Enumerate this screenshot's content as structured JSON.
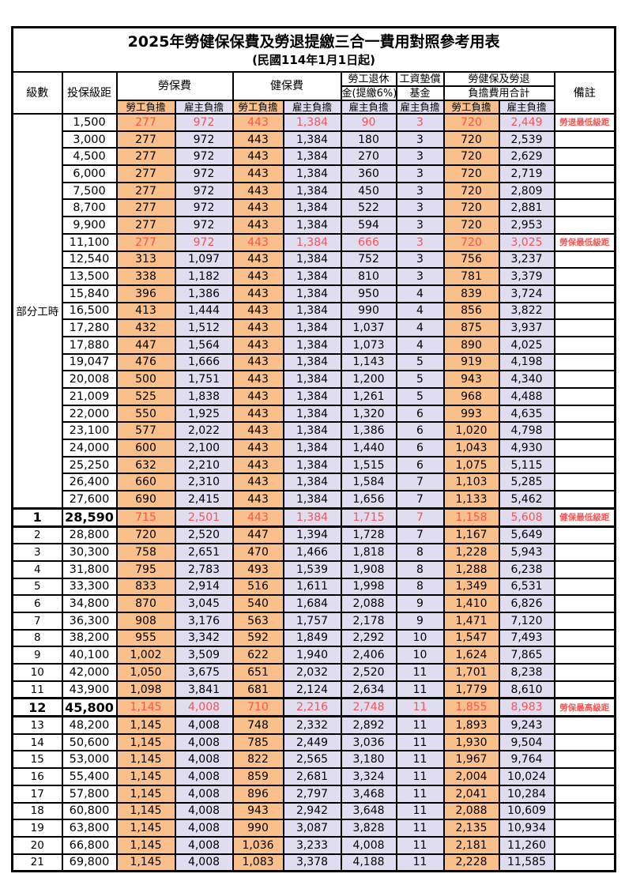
{
  "title": "2025年勞健保保費及勞退提繳三合一費用對照參考用表",
  "subtitle": "(民國114年1月1日起)",
  "colors": {
    "employee_bg": "#fac08c",
    "employer_bg": "#e0ddf0",
    "highlight_text": "#ff5050",
    "border": "#000000"
  },
  "header": {
    "level": "級數",
    "bracket": "投保級距",
    "labor_fee": "勞保費",
    "health_fee": "健保費",
    "pension_line1": "勞工退休",
    "pension_line2": "金(提繳6%)",
    "wage_fund_line1": "工資墊償",
    "wage_fund_line2": "基金",
    "total_line1": "勞健保及勞退",
    "total_line2": "負擔費用合計",
    "remark": "備註",
    "employee": "勞工負擔",
    "employer": "雇主負擔"
  },
  "part_time_label": "部分工時",
  "part_time_rowspan": 23,
  "rows": [
    {
      "level": "",
      "bracket": "1,500",
      "values": [
        "277",
        "972",
        "443",
        "1,384",
        "90",
        "3",
        "720",
        "2,449"
      ],
      "remark": "勞退最低級距",
      "highlight": true
    },
    {
      "level": "",
      "bracket": "3,000",
      "values": [
        "277",
        "972",
        "443",
        "1,384",
        "180",
        "3",
        "720",
        "2,539"
      ],
      "remark": ""
    },
    {
      "level": "",
      "bracket": "4,500",
      "values": [
        "277",
        "972",
        "443",
        "1,384",
        "270",
        "3",
        "720",
        "2,629"
      ],
      "remark": ""
    },
    {
      "level": "",
      "bracket": "6,000",
      "values": [
        "277",
        "972",
        "443",
        "1,384",
        "360",
        "3",
        "720",
        "2,719"
      ],
      "remark": ""
    },
    {
      "level": "",
      "bracket": "7,500",
      "values": [
        "277",
        "972",
        "443",
        "1,384",
        "450",
        "3",
        "720",
        "2,809"
      ],
      "remark": ""
    },
    {
      "level": "",
      "bracket": "8,700",
      "values": [
        "277",
        "972",
        "443",
        "1,384",
        "522",
        "3",
        "720",
        "2,881"
      ],
      "remark": ""
    },
    {
      "level": "",
      "bracket": "9,900",
      "values": [
        "277",
        "972",
        "443",
        "1,384",
        "594",
        "3",
        "720",
        "2,953"
      ],
      "remark": ""
    },
    {
      "level": "",
      "bracket": "11,100",
      "values": [
        "277",
        "972",
        "443",
        "1,384",
        "666",
        "3",
        "720",
        "3,025"
      ],
      "remark": "勞保最低級距",
      "highlight": true
    },
    {
      "level": "",
      "bracket": "12,540",
      "values": [
        "313",
        "1,097",
        "443",
        "1,384",
        "752",
        "3",
        "756",
        "3,237"
      ],
      "remark": ""
    },
    {
      "level": "",
      "bracket": "13,500",
      "values": [
        "338",
        "1,182",
        "443",
        "1,384",
        "810",
        "3",
        "781",
        "3,379"
      ],
      "remark": ""
    },
    {
      "level": "",
      "bracket": "15,840",
      "values": [
        "396",
        "1,386",
        "443",
        "1,384",
        "950",
        "4",
        "839",
        "3,724"
      ],
      "remark": ""
    },
    {
      "level": "",
      "bracket": "16,500",
      "values": [
        "413",
        "1,444",
        "443",
        "1,384",
        "990",
        "4",
        "856",
        "3,822"
      ],
      "remark": ""
    },
    {
      "level": "",
      "bracket": "17,280",
      "values": [
        "432",
        "1,512",
        "443",
        "1,384",
        "1,037",
        "4",
        "875",
        "3,937"
      ],
      "remark": ""
    },
    {
      "level": "",
      "bracket": "17,880",
      "values": [
        "447",
        "1,564",
        "443",
        "1,384",
        "1,073",
        "4",
        "890",
        "4,025"
      ],
      "remark": ""
    },
    {
      "level": "",
      "bracket": "19,047",
      "values": [
        "476",
        "1,666",
        "443",
        "1,384",
        "1,143",
        "5",
        "919",
        "4,198"
      ],
      "remark": ""
    },
    {
      "level": "",
      "bracket": "20,008",
      "values": [
        "500",
        "1,751",
        "443",
        "1,384",
        "1,200",
        "5",
        "943",
        "4,340"
      ],
      "remark": ""
    },
    {
      "level": "",
      "bracket": "21,009",
      "values": [
        "525",
        "1,838",
        "443",
        "1,384",
        "1,261",
        "5",
        "968",
        "4,488"
      ],
      "remark": ""
    },
    {
      "level": "",
      "bracket": "22,000",
      "values": [
        "550",
        "1,925",
        "443",
        "1,384",
        "1,320",
        "6",
        "993",
        "4,635"
      ],
      "remark": ""
    },
    {
      "level": "",
      "bracket": "23,100",
      "values": [
        "577",
        "2,022",
        "443",
        "1,384",
        "1,386",
        "6",
        "1,020",
        "4,798"
      ],
      "remark": ""
    },
    {
      "level": "",
      "bracket": "24,000",
      "values": [
        "600",
        "2,100",
        "443",
        "1,384",
        "1,440",
        "6",
        "1,043",
        "4,930"
      ],
      "remark": ""
    },
    {
      "level": "",
      "bracket": "25,250",
      "values": [
        "632",
        "2,210",
        "443",
        "1,384",
        "1,515",
        "6",
        "1,075",
        "5,115"
      ],
      "remark": ""
    },
    {
      "level": "",
      "bracket": "26,400",
      "values": [
        "660",
        "2,310",
        "443",
        "1,384",
        "1,584",
        "7",
        "1,103",
        "5,285"
      ],
      "remark": ""
    },
    {
      "level": "",
      "bracket": "27,600",
      "values": [
        "690",
        "2,415",
        "443",
        "1,384",
        "1,656",
        "7",
        "1,133",
        "5,462"
      ],
      "remark": ""
    },
    {
      "level": "1",
      "bracket": "28,590",
      "values": [
        "715",
        "2,501",
        "443",
        "1,384",
        "1,715",
        "7",
        "1,158",
        "5,608"
      ],
      "remark": "健保最低級距",
      "highlight": true,
      "milestone": true
    },
    {
      "level": "2",
      "bracket": "28,800",
      "values": [
        "720",
        "2,520",
        "447",
        "1,394",
        "1,728",
        "7",
        "1,167",
        "5,649"
      ],
      "remark": ""
    },
    {
      "level": "3",
      "bracket": "30,300",
      "values": [
        "758",
        "2,651",
        "470",
        "1,466",
        "1,818",
        "8",
        "1,228",
        "5,943"
      ],
      "remark": ""
    },
    {
      "level": "4",
      "bracket": "31,800",
      "values": [
        "795",
        "2,783",
        "493",
        "1,539",
        "1,908",
        "8",
        "1,288",
        "6,238"
      ],
      "remark": ""
    },
    {
      "level": "5",
      "bracket": "33,300",
      "values": [
        "833",
        "2,914",
        "516",
        "1,611",
        "1,998",
        "8",
        "1,349",
        "6,531"
      ],
      "remark": ""
    },
    {
      "level": "6",
      "bracket": "34,800",
      "values": [
        "870",
        "3,045",
        "540",
        "1,684",
        "2,088",
        "9",
        "1,410",
        "6,826"
      ],
      "remark": ""
    },
    {
      "level": "7",
      "bracket": "36,300",
      "values": [
        "908",
        "3,176",
        "563",
        "1,757",
        "2,178",
        "9",
        "1,471",
        "7,120"
      ],
      "remark": ""
    },
    {
      "level": "8",
      "bracket": "38,200",
      "values": [
        "955",
        "3,342",
        "592",
        "1,849",
        "2,292",
        "10",
        "1,547",
        "7,493"
      ],
      "remark": ""
    },
    {
      "level": "9",
      "bracket": "40,100",
      "values": [
        "1,002",
        "3,509",
        "622",
        "1,940",
        "2,406",
        "10",
        "1,624",
        "7,865"
      ],
      "remark": ""
    },
    {
      "level": "10",
      "bracket": "42,000",
      "values": [
        "1,050",
        "3,675",
        "651",
        "2,032",
        "2,520",
        "11",
        "1,701",
        "8,238"
      ],
      "remark": ""
    },
    {
      "level": "11",
      "bracket": "43,900",
      "values": [
        "1,098",
        "3,841",
        "681",
        "2,124",
        "2,634",
        "11",
        "1,779",
        "8,610"
      ],
      "remark": ""
    },
    {
      "level": "12",
      "bracket": "45,800",
      "values": [
        "1,145",
        "4,008",
        "710",
        "2,216",
        "2,748",
        "11",
        "1,855",
        "8,983"
      ],
      "remark": "勞保最高級距",
      "highlight": true,
      "milestone": true
    },
    {
      "level": "13",
      "bracket": "48,200",
      "values": [
        "1,145",
        "4,008",
        "748",
        "2,332",
        "2,892",
        "11",
        "1,893",
        "9,243"
      ],
      "remark": ""
    },
    {
      "level": "14",
      "bracket": "50,600",
      "values": [
        "1,145",
        "4,008",
        "785",
        "2,449",
        "3,036",
        "11",
        "1,930",
        "9,504"
      ],
      "remark": ""
    },
    {
      "level": "15",
      "bracket": "53,000",
      "values": [
        "1,145",
        "4,008",
        "822",
        "2,565",
        "3,180",
        "11",
        "1,967",
        "9,764"
      ],
      "remark": ""
    },
    {
      "level": "16",
      "bracket": "55,400",
      "values": [
        "1,145",
        "4,008",
        "859",
        "2,681",
        "3,324",
        "11",
        "2,004",
        "10,024"
      ],
      "remark": ""
    },
    {
      "level": "17",
      "bracket": "57,800",
      "values": [
        "1,145",
        "4,008",
        "896",
        "2,797",
        "3,468",
        "11",
        "2,041",
        "10,284"
      ],
      "remark": ""
    },
    {
      "level": "18",
      "bracket": "60,800",
      "values": [
        "1,145",
        "4,008",
        "943",
        "2,942",
        "3,648",
        "11",
        "2,088",
        "10,609"
      ],
      "remark": ""
    },
    {
      "level": "19",
      "bracket": "63,800",
      "values": [
        "1,145",
        "4,008",
        "990",
        "3,087",
        "3,828",
        "11",
        "2,135",
        "10,934"
      ],
      "remark": ""
    },
    {
      "level": "20",
      "bracket": "66,800",
      "values": [
        "1,145",
        "4,008",
        "1,036",
        "3,233",
        "4,008",
        "11",
        "2,181",
        "11,260"
      ],
      "remark": ""
    },
    {
      "level": "21",
      "bracket": "69,800",
      "values": [
        "1,145",
        "4,008",
        "1,083",
        "3,378",
        "4,188",
        "11",
        "2,228",
        "11,585"
      ],
      "remark": ""
    }
  ]
}
